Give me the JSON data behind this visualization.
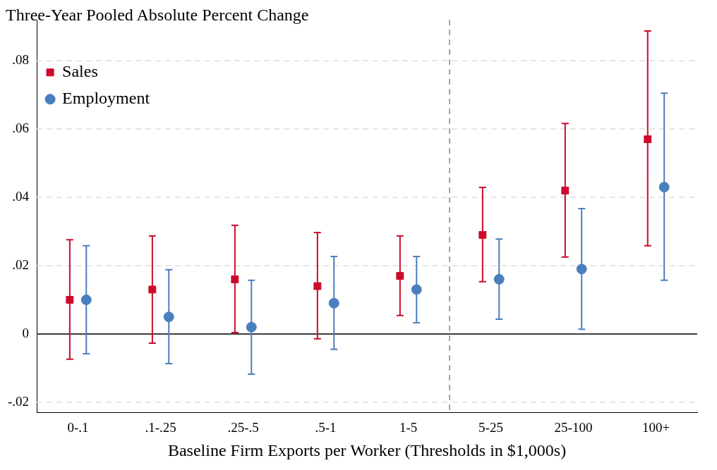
{
  "chart_data": {
    "type": "scatter",
    "ylabel": "Three-Year Pooled Absolute Percent Change",
    "xlabel": "Baseline Firm Exports per Worker (Thresholds in $1,000s)",
    "categories": [
      "0-.1",
      ".1-.25",
      ".25-.5",
      ".5-1",
      "1-5",
      "5-25",
      "25-100",
      "100+"
    ],
    "series": [
      {
        "name": "Sales",
        "color": "#cc0a2a",
        "marker": "square",
        "values": [
          0.01,
          0.013,
          0.016,
          0.014,
          0.017,
          0.029,
          0.042,
          0.057
        ],
        "errors": [
          [
            -0.0074,
            0.0276
          ],
          [
            -0.0027,
            0.0287
          ],
          [
            0.0004,
            0.0318
          ],
          [
            -0.0014,
            0.0297
          ],
          [
            0.0054,
            0.0287
          ],
          [
            0.0153,
            0.0429
          ],
          [
            0.0225,
            0.0616
          ],
          [
            0.0258,
            0.0887
          ]
        ]
      },
      {
        "name": "Employment",
        "color": "#4a7fbd",
        "marker": "circle",
        "values": [
          0.01,
          0.005,
          0.002,
          0.009,
          0.013,
          0.016,
          0.019,
          0.043
        ],
        "errors": [
          [
            -0.0058,
            0.0258
          ],
          [
            -0.0087,
            0.0188
          ],
          [
            -0.0118,
            0.0157
          ],
          [
            -0.0045,
            0.0227
          ],
          [
            0.0033,
            0.0227
          ],
          [
            0.0043,
            0.0278
          ],
          [
            0.0014,
            0.0367
          ],
          [
            0.0157,
            0.0705
          ]
        ]
      }
    ],
    "ylim": [
      -0.023,
      0.092
    ],
    "yticks": [
      {
        "value": -0.02,
        "label": "-.02"
      },
      0,
      {
        "value": 0.02,
        "label": ".02"
      },
      {
        "value": 0.04,
        "label": ".04"
      },
      {
        "value": 0.06,
        "label": ".06"
      },
      {
        "value": 0.08,
        "label": ".08"
      }
    ],
    "grid": "y",
    "line_style": "dashed",
    "legend": "top left",
    "ref_lines": [
      {
        "axis": "y",
        "value": 0,
        "color": "#000000",
        "line_style": "solid"
      },
      {
        "axis": "x",
        "value": "5-25",
        "color": "#888888",
        "line_style": "dashed"
      }
    ]
  }
}
